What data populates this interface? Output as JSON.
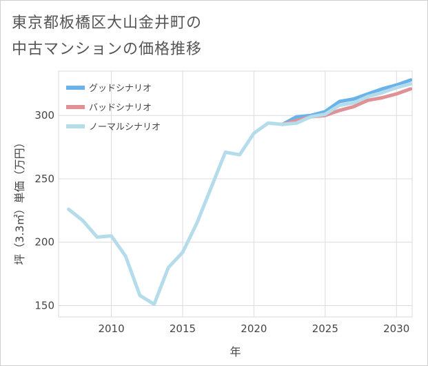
{
  "title_line1": "東京都板橋区大山金井町の",
  "title_line2": "中古マンションの価格推移",
  "chart_data": {
    "type": "line",
    "title": "東京都板橋区大山金井町の中古マンションの価格推移",
    "xlabel": "年",
    "ylabel": "坪（3.3㎡）単価（万円）",
    "xlim": [
      2006.3,
      2031.1
    ],
    "ylim": [
      141,
      335
    ],
    "xticks": [
      2010,
      2015,
      2020,
      2025,
      2030
    ],
    "yticks": [
      150,
      200,
      250,
      300
    ],
    "grid": true,
    "legend_position": "top-left",
    "series": [
      {
        "name": "グッドシナリオ",
        "color": "#6ab2ea",
        "x": [
          2022,
          2023,
          2024,
          2025,
          2026,
          2027,
          2028,
          2029,
          2030,
          2031
        ],
        "values": [
          293,
          299,
          300,
          303,
          311,
          313,
          317,
          321,
          324,
          328
        ]
      },
      {
        "name": "バッドシナリオ",
        "color": "#e09196",
        "x": [
          2022,
          2023,
          2024,
          2025,
          2026,
          2027,
          2028,
          2029,
          2030,
          2031
        ],
        "values": [
          293,
          296,
          299,
          300,
          304,
          307,
          312,
          314,
          317,
          321
        ]
      },
      {
        "name": "ノーマルシナリオ",
        "color": "#b5dcea",
        "x": [
          2007,
          2008,
          2009,
          2010,
          2011,
          2012,
          2013,
          2014,
          2015,
          2016,
          2017,
          2018,
          2019,
          2020,
          2021,
          2022,
          2023,
          2024,
          2025,
          2026,
          2027,
          2028,
          2029,
          2030,
          2031
        ],
        "values": [
          226,
          217,
          204,
          205,
          189,
          158,
          151,
          180,
          192,
          215,
          243,
          271,
          269,
          286,
          294,
          293,
          294,
          299,
          301,
          308,
          310,
          315,
          318,
          322,
          325
        ]
      }
    ]
  }
}
